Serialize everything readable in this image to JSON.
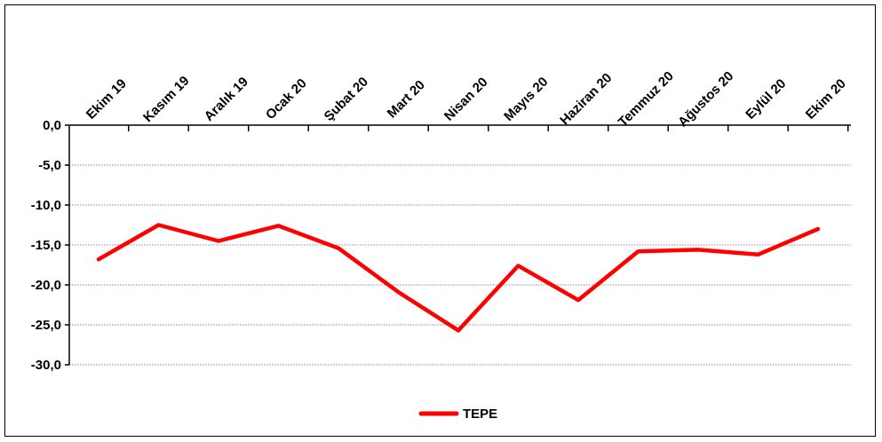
{
  "chart_data": {
    "type": "line",
    "categories": [
      "Ekim 19",
      "Kasım 19",
      "Aralık 19",
      "Ocak 20",
      "Şubat 20",
      "Mart 20",
      "Nisan 20",
      "Mayıs 20",
      "Haziran 20",
      "Temmuz 20",
      "Ağustos 20",
      "Eylül 20",
      "Ekim 20"
    ],
    "series": [
      {
        "name": "TEPE",
        "color": "#ff0000",
        "values": [
          -16.8,
          -12.5,
          -14.5,
          -12.6,
          -15.4,
          -20.9,
          -25.7,
          -17.6,
          -21.9,
          -15.8,
          -15.6,
          -16.2,
          -13.0
        ]
      }
    ],
    "y_ticks": [
      "0,0",
      "-5,0",
      "-10,0",
      "-15,0",
      "-20,0",
      "-25,0",
      "-30,0"
    ],
    "y_tick_values": [
      0,
      -5,
      -10,
      -15,
      -20,
      -25,
      -30
    ],
    "ylim": [
      -30,
      0
    ],
    "x_axis_position": "top",
    "grid": "horizontal-dotted",
    "legend": "bottom-center"
  }
}
